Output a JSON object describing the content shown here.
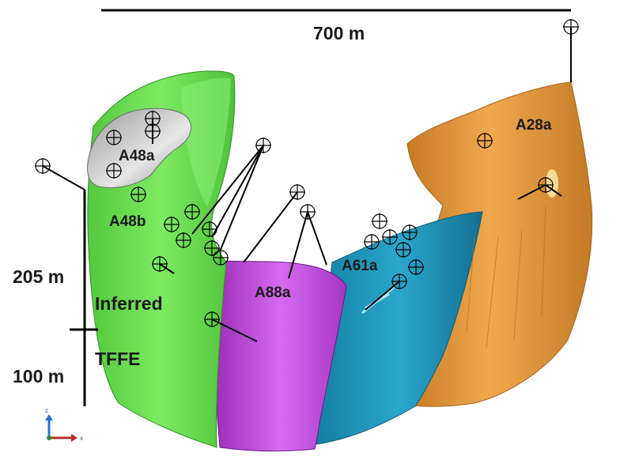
{
  "scale": {
    "horizontal_label": "700 m",
    "vertical_upper_label": "205 m",
    "vertical_lower_label": "100 m"
  },
  "zones": {
    "a48a": "A48a",
    "a48b": "A48b",
    "a88a": "A88a",
    "a61a": "A61a",
    "a28a": "A28a"
  },
  "categories": {
    "inferred": "Inferred",
    "tffe": "TFFE"
  },
  "axes": {
    "z": "z",
    "x": "x"
  },
  "colors": {
    "green_body": "#6fe05a",
    "grey_cap": "#b9b9b9",
    "purple_body": "#c34de0",
    "cyan_body": "#1f9cc0",
    "orange_body": "#e79a3c",
    "axis_z": "#2a6fd6",
    "axis_x": "#b0302a"
  }
}
